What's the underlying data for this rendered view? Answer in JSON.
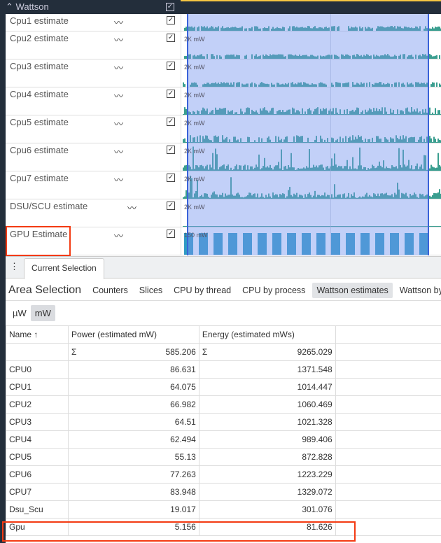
{
  "group": {
    "title": "Wattson",
    "collapse_icon": "chevron-up-icon",
    "checked": true
  },
  "tracks": [
    {
      "name": "Cpu1 estimate",
      "scale": "",
      "kind": "low"
    },
    {
      "name": "Cpu2 estimate",
      "scale": "2K mW",
      "kind": "low"
    },
    {
      "name": "Cpu3 estimate",
      "scale": "2K mW",
      "kind": "low"
    },
    {
      "name": "Cpu4 estimate",
      "scale": "2K mW",
      "kind": "mid"
    },
    {
      "name": "Cpu5 estimate",
      "scale": "2K mW",
      "kind": "mid"
    },
    {
      "name": "Cpu6 estimate",
      "scale": "2K mW",
      "kind": "spiky"
    },
    {
      "name": "Cpu7 estimate",
      "scale": "2K mW",
      "kind": "spiky"
    },
    {
      "name": "DSU/SCU estimate",
      "scale": "2K mW",
      "kind": "flat"
    },
    {
      "name": "GPU Estimate",
      "scale": "150 mW",
      "kind": "gpu"
    }
  ],
  "colors": {
    "counter": "#3a9e8f",
    "gpu": "#2f9ac4",
    "selection": "#3a62d8",
    "highlight": "#f33a12",
    "dark": "#232e3b"
  },
  "panel": {
    "menu_icon": "⋮",
    "tab": "Current Selection",
    "title": "Area Selection",
    "subtabs": [
      "Counters",
      "Slices",
      "CPU by thread",
      "CPU by process",
      "Wattson estimates",
      "Wattson by"
    ],
    "active_subtab": "Wattson estimates",
    "units": [
      "µW",
      "mW"
    ],
    "active_unit": "mW"
  },
  "table": {
    "headers": [
      "Name ↑",
      "Power (estimated mW)",
      "Energy (estimated mWs)"
    ],
    "sum_symbol": "Σ",
    "power_total": "585.206",
    "energy_total": "9265.029",
    "rows": [
      [
        "CPU0",
        "86.631",
        "1371.548"
      ],
      [
        "CPU1",
        "64.075",
        "1014.447"
      ],
      [
        "CPU2",
        "66.982",
        "1060.469"
      ],
      [
        "CPU3",
        "64.51",
        "1021.328"
      ],
      [
        "CPU4",
        "62.494",
        "989.406"
      ],
      [
        "CPU5",
        "55.13",
        "872.828"
      ],
      [
        "CPU6",
        "77.263",
        "1223.229"
      ],
      [
        "CPU7",
        "83.948",
        "1329.072"
      ],
      [
        "Dsu_Scu",
        "19.017",
        "301.076"
      ],
      [
        "Gpu",
        "5.156",
        "81.626"
      ]
    ]
  }
}
